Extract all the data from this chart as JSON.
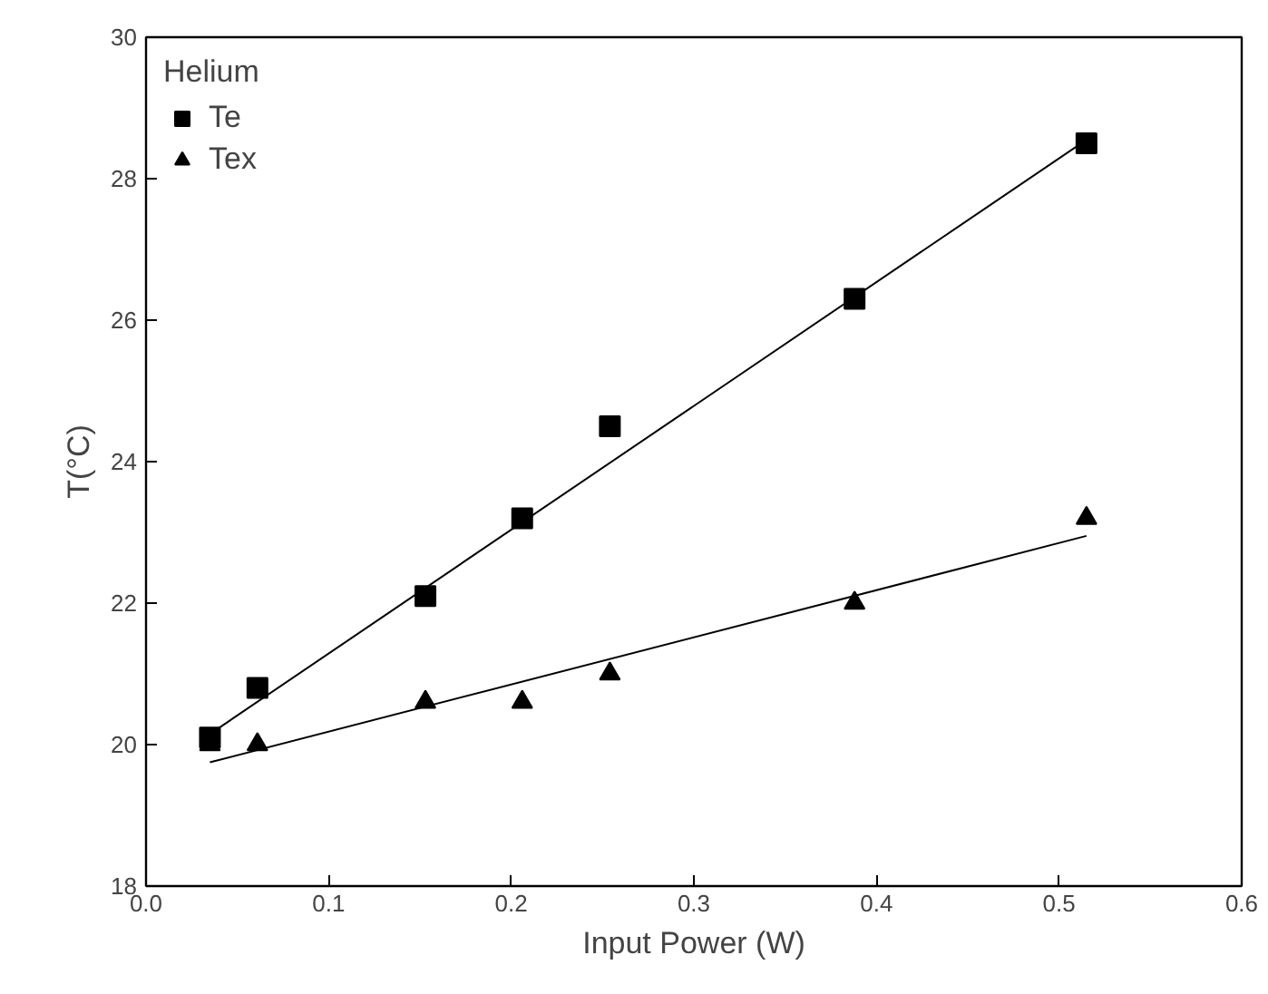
{
  "chart_data": {
    "type": "scatter",
    "xlabel": "Input Power (W)",
    "ylabel": "T(°C)",
    "legend_title": "Helium",
    "legend": "top left",
    "grid": false,
    "xlim": [
      0,
      0.6
    ],
    "ylim": [
      18,
      30
    ],
    "xticks": [
      {
        "value": 0,
        "label": "0.0"
      },
      0.1,
      0.2,
      0.3,
      0.4,
      0.5,
      0.6
    ],
    "yticks": [
      18,
      20,
      22,
      24,
      26,
      28,
      30
    ],
    "series": [
      {
        "name": "Te",
        "color": "#000000",
        "marker": "square",
        "x": [
          0.035,
          0.061,
          0.153,
          0.206,
          0.254,
          0.388,
          0.515
        ],
        "values": [
          20.1,
          20.8,
          22.1,
          23.2,
          24.5,
          26.3,
          28.5
        ]
      },
      {
        "name": "Tex",
        "color": "#000000",
        "marker": "triangle",
        "x": [
          0.035,
          0.061,
          0.153,
          0.206,
          0.254,
          0.388,
          0.515
        ],
        "values": [
          20.0,
          20.0,
          20.6,
          20.6,
          21.0,
          22.0,
          23.2
        ]
      },
      {
        "type": "line",
        "color": "#000000",
        "x": [
          0.035,
          0.515
        ],
        "values": [
          20.15,
          28.55
        ]
      },
      {
        "type": "line",
        "color": "#000000",
        "x": [
          0.035,
          0.515
        ],
        "values": [
          19.75,
          22.95
        ]
      }
    ]
  }
}
